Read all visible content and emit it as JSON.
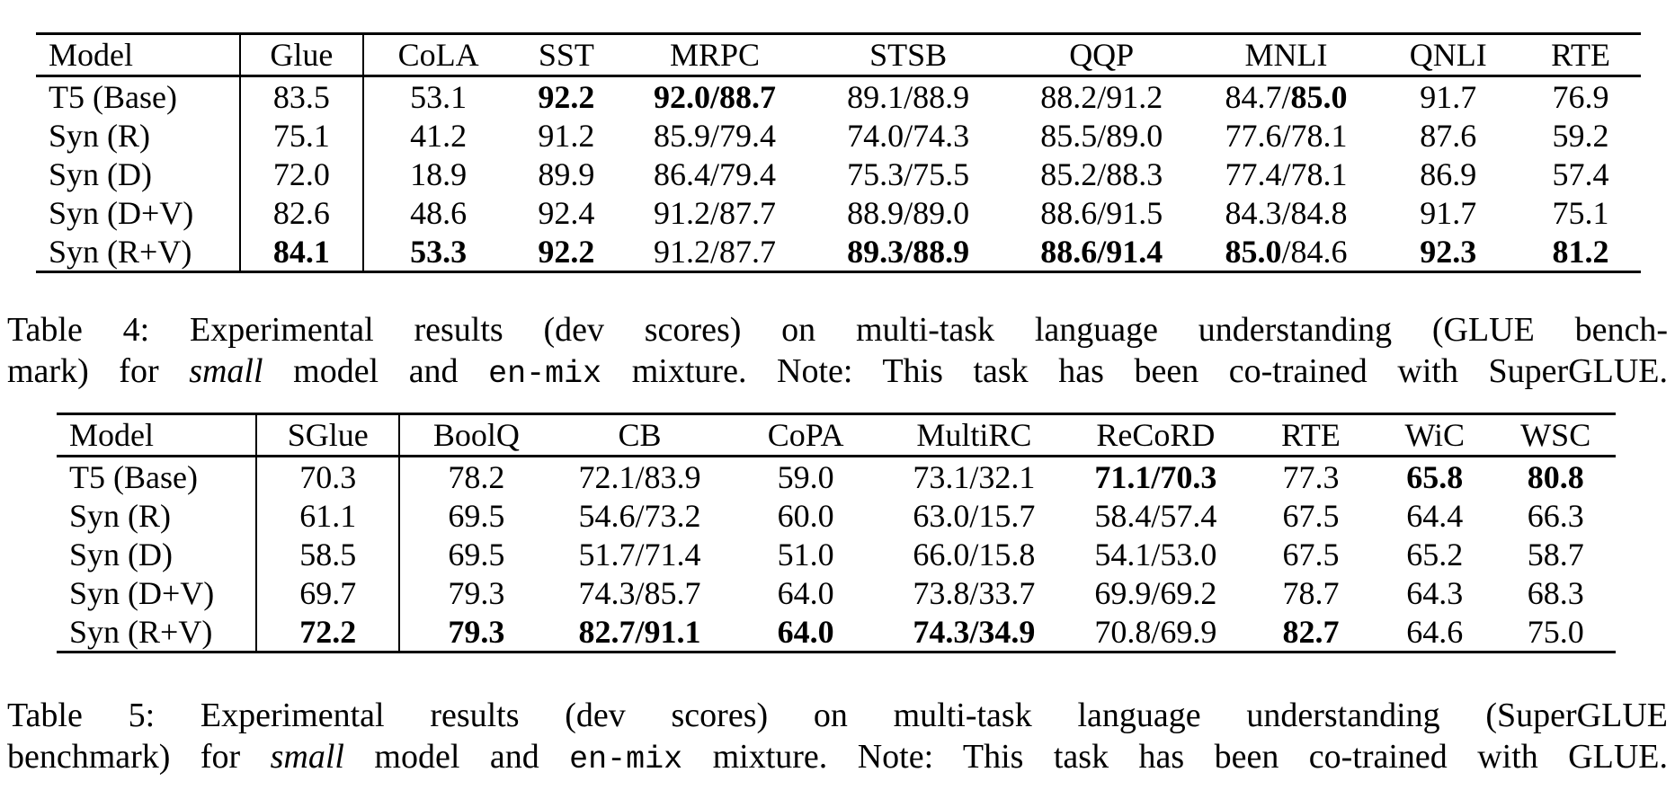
{
  "page": {
    "background_color": "#ffffff",
    "text_color": "#000000"
  },
  "tables": [
    {
      "id": "glue",
      "columns": [
        "Model",
        "Glue",
        "CoLA",
        "SST",
        "MRPC",
        "STSB",
        "QQP",
        "MNLI",
        "QNLI",
        "RTE"
      ],
      "col_widths_pct": [
        12.7,
        7.7,
        9.3,
        6.7,
        11.8,
        12.3,
        11.8,
        11.2,
        9.0,
        7.5
      ],
      "rows": [
        [
          "T5 (Base)",
          "83.5",
          "53.1",
          "**92.2**",
          "**92.0/88.7**",
          "89.1/88.9",
          "88.2/91.2",
          "84.7/**85.0**",
          "91.7",
          "76.9"
        ],
        [
          "Syn (R)",
          "75.1",
          "41.2",
          "91.2",
          "85.9/79.4",
          "74.0/74.3",
          "85.5/89.0",
          "77.6/78.1",
          "87.6",
          "59.2"
        ],
        [
          "Syn (D)",
          "72.0",
          "18.9",
          "89.9",
          "86.4/79.4",
          "75.3/75.5",
          "85.2/88.3",
          "77.4/78.1",
          "86.9",
          "57.4"
        ],
        [
          "Syn (D+V)",
          "82.6",
          "48.6",
          "92.4",
          "91.2/87.7",
          "88.9/89.0",
          "88.6/91.5",
          "84.3/84.8",
          "91.7",
          "75.1"
        ],
        [
          "Syn (R+V)",
          "**84.1**",
          "**53.3**",
          "**92.2**",
          "91.2/87.7",
          "**89.3/88.9**",
          "**88.6/91.4**",
          "**85.0**/84.6",
          "**92.3**",
          "**81.2**"
        ]
      ],
      "caption": {
        "lines": [
          [
            {
              "t": "Table 4: Experimental results (dev scores) on multi-task language understanding (GLUE bench-",
              "st": "r"
            }
          ],
          [
            {
              "t": "mark) for ",
              "st": "r"
            },
            {
              "t": "small",
              "st": "i"
            },
            {
              "t": " model and ",
              "st": "r"
            },
            {
              "t": "en-mix",
              "st": "m"
            },
            {
              "t": " mixture. Note: This task has been co-trained with SuperGLUE.",
              "st": "r"
            }
          ]
        ]
      }
    },
    {
      "id": "superglue",
      "columns": [
        "Model",
        "SGlue",
        "BoolQ",
        "CB",
        "CoPA",
        "MultiRC",
        "ReCoRD",
        "RTE",
        "WiC",
        "WSC"
      ],
      "col_widths_pct": [
        12.8,
        9.2,
        9.8,
        11.2,
        10.1,
        11.5,
        11.8,
        8.1,
        7.8,
        7.7
      ],
      "rows": [
        [
          "T5 (Base)",
          "70.3",
          "78.2",
          "72.1/83.9",
          "59.0",
          "73.1/32.1",
          "**71.1/70.3**",
          "77.3",
          "**65.8**",
          "**80.8**"
        ],
        [
          "Syn (R)",
          "61.1",
          "69.5",
          "54.6/73.2",
          "60.0",
          "63.0/15.7",
          "58.4/57.4",
          "67.5",
          "64.4",
          "66.3"
        ],
        [
          "Syn (D)",
          "58.5",
          "69.5",
          "51.7/71.4",
          "51.0",
          "66.0/15.8",
          "54.1/53.0",
          "67.5",
          "65.2",
          "58.7"
        ],
        [
          "Syn (D+V)",
          "69.7",
          "79.3",
          "74.3/85.7",
          "64.0",
          "73.8/33.7",
          "69.9/69.2",
          "78.7",
          "64.3",
          "68.3"
        ],
        [
          "Syn (R+V)",
          "**72.2**",
          "**79.3**",
          "**82.7/91.1**",
          "**64.0**",
          "**74.3/34.9**",
          "70.8/69.9",
          "**82.7**",
          "64.6",
          "75.0"
        ]
      ],
      "caption": {
        "lines": [
          [
            {
              "t": "Table 5: Experimental results (dev scores) on multi-task language understanding (SuperGLUE",
              "st": "r"
            }
          ],
          [
            {
              "t": "benchmark) for ",
              "st": "r"
            },
            {
              "t": "small",
              "st": "i"
            },
            {
              "t": " model and ",
              "st": "r"
            },
            {
              "t": "en-mix",
              "st": "m"
            },
            {
              "t": " mixture. Note: This task has been co-trained with GLUE.",
              "st": "r"
            }
          ]
        ]
      }
    }
  ]
}
